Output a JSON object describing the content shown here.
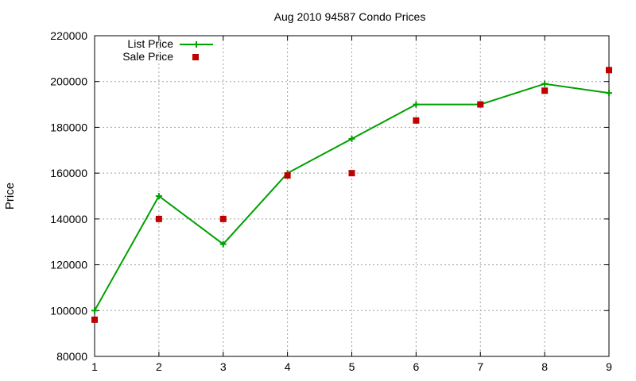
{
  "chart_data": {
    "type": "line",
    "title": "Aug 2010 94587 Condo Prices",
    "xlabel": "",
    "ylabel": "Price",
    "xlim": [
      1,
      9
    ],
    "ylim": [
      80000,
      220000
    ],
    "x_ticks": [
      1,
      2,
      3,
      4,
      5,
      6,
      7,
      8,
      9
    ],
    "y_ticks": [
      80000,
      100000,
      120000,
      140000,
      160000,
      180000,
      200000,
      220000
    ],
    "grid": true,
    "legend_position": "top-left",
    "series": [
      {
        "name": "List Price",
        "style": "line-with-plus-markers",
        "color": "#00a000",
        "x": [
          1,
          2,
          3,
          4,
          5,
          6,
          7,
          8,
          9
        ],
        "values": [
          100000,
          150000,
          129000,
          160000,
          175000,
          190000,
          190000,
          199000,
          195000
        ]
      },
      {
        "name": "Sale Price",
        "style": "square-markers",
        "color": "#c00000",
        "x": [
          1,
          2,
          3,
          4,
          5,
          6,
          7,
          8,
          9
        ],
        "values": [
          96000,
          140000,
          140000,
          159000,
          160000,
          183000,
          190000,
          196000,
          205000
        ]
      }
    ]
  }
}
